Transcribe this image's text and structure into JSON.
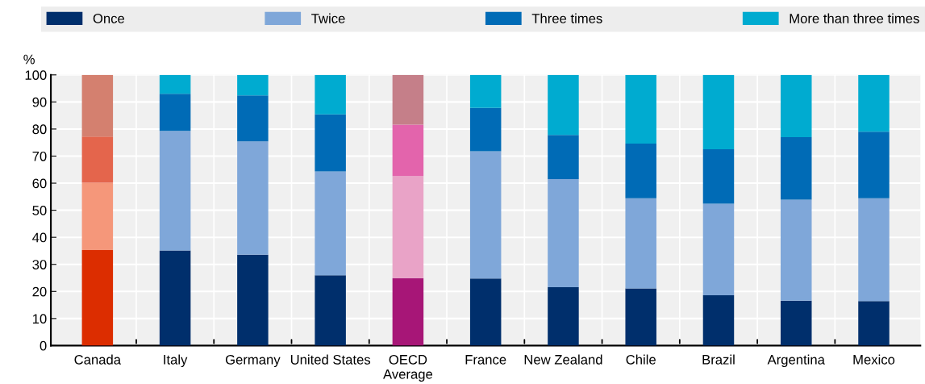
{
  "chart_data": {
    "type": "bar",
    "stacked": true,
    "ylabel": "%",
    "categories": [
      "Canada",
      "Italy",
      "Germany",
      "United States",
      "OECD\nAverage",
      "France",
      "New Zealand",
      "Chile",
      "Brazil",
      "Argentina",
      "Mexico"
    ],
    "series": [
      {
        "name": "Once",
        "color": "#002f6c",
        "colors": [
          "#dc2d00",
          "#002f6c",
          "#002f6c",
          "#002f6c",
          "#a71677",
          "#002f6c",
          "#002f6c",
          "#002f6c",
          "#002f6c",
          "#002f6c",
          "#002f6c"
        ],
        "values": [
          35.3,
          35.1,
          33.6,
          26.0,
          24.9,
          24.8,
          21.6,
          21.1,
          18.6,
          16.6,
          16.4
        ]
      },
      {
        "name": "Twice",
        "color": "#7fa7d9",
        "colors": [
          "#f5977a",
          "#7fa7d9",
          "#7fa7d9",
          "#7fa7d9",
          "#e9a3c7",
          "#7fa7d9",
          "#7fa7d9",
          "#7fa7d9",
          "#7fa7d9",
          "#7fa7d9",
          "#7fa7d9"
        ],
        "values": [
          24.9,
          44.2,
          41.8,
          38.3,
          37.7,
          47.0,
          39.9,
          33.3,
          33.8,
          37.3,
          38.0
        ]
      },
      {
        "name": "Three times",
        "color": "#006bb6",
        "colors": [
          "#e4654c",
          "#006bb6",
          "#006bb6",
          "#006bb6",
          "#e364ac",
          "#006bb6",
          "#006bb6",
          "#006bb6",
          "#006bb6",
          "#006bb6",
          "#006bb6"
        ],
        "values": [
          17.0,
          13.7,
          17.0,
          21.1,
          19.0,
          16.0,
          16.3,
          20.2,
          20.1,
          23.1,
          24.6
        ]
      },
      {
        "name": "More than three times",
        "color": "#00abd0",
        "colors": [
          "#d4806f",
          "#00abd0",
          "#00abd0",
          "#00abd0",
          "#c57f89",
          "#00abd0",
          "#00abd0",
          "#00abd0",
          "#00abd0",
          "#00abd0",
          "#00abd0"
        ],
        "values": [
          22.8,
          7.0,
          7.6,
          14.6,
          18.4,
          12.2,
          22.2,
          25.4,
          27.5,
          23.0,
          21.0
        ]
      }
    ],
    "ylim": [
      0,
      100
    ],
    "yticks": [
      0,
      10,
      20,
      30,
      40,
      50,
      60,
      70,
      80,
      90,
      100
    ],
    "grid": true,
    "legend": "top"
  }
}
